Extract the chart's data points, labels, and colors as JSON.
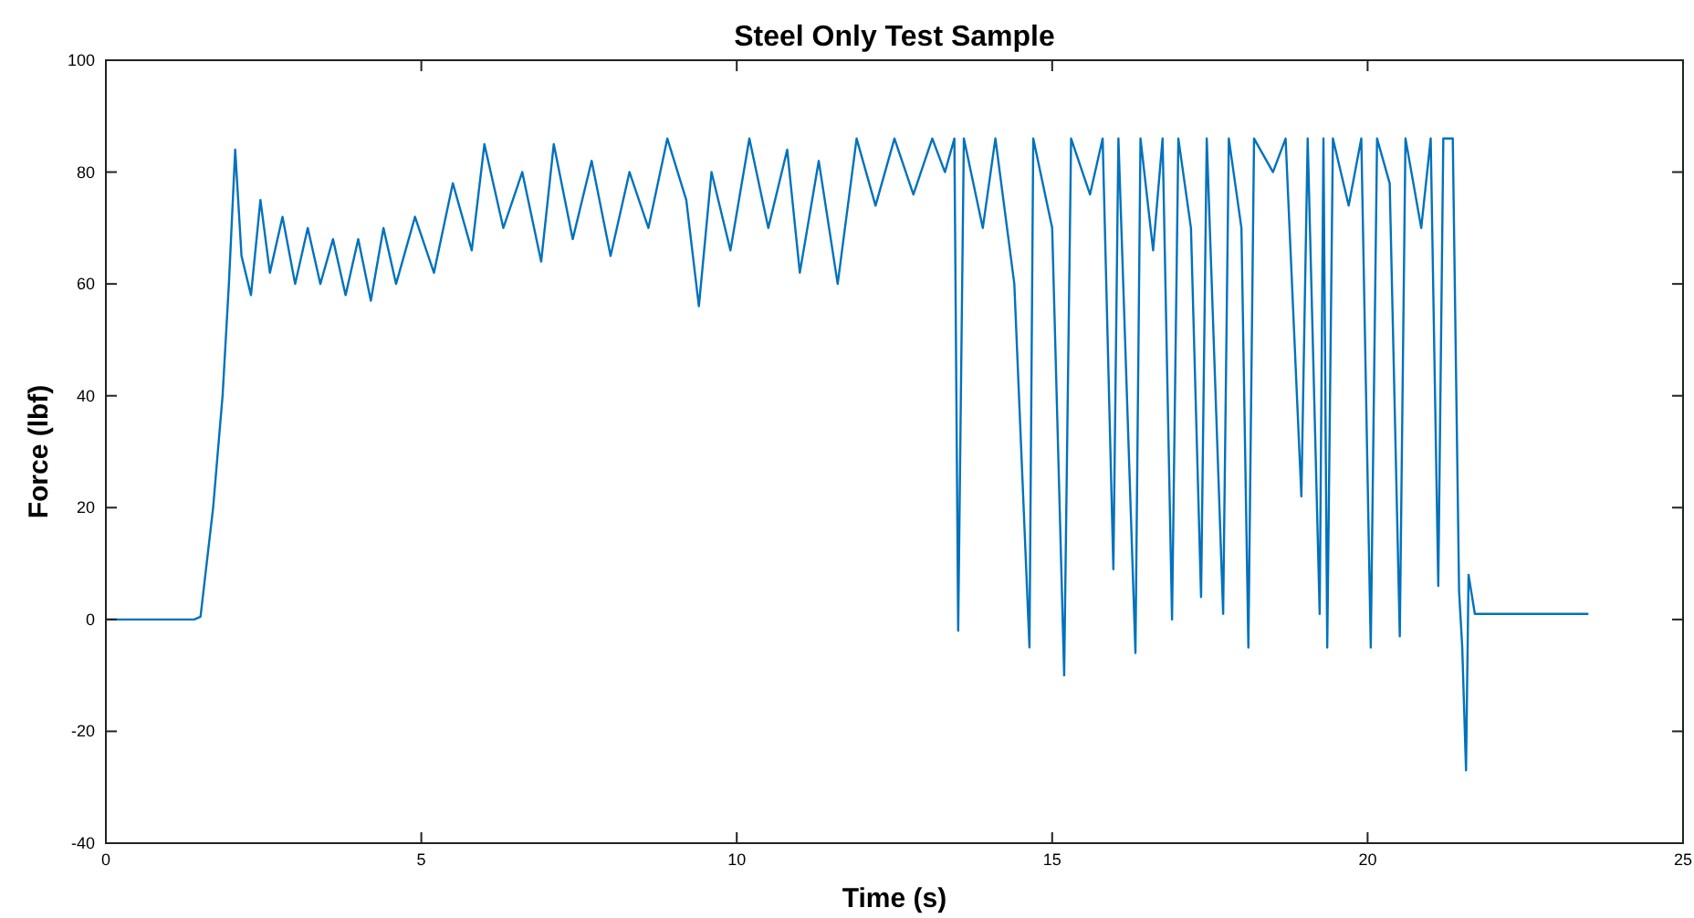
{
  "chart_data": {
    "type": "line",
    "title": "Steel Only Test Sample",
    "xlabel": "Time (s)",
    "ylabel": "Force (lbf)",
    "xlim": [
      0,
      25
    ],
    "xticks": [
      0,
      5,
      10,
      15,
      20,
      25
    ],
    "ylim": [
      -40,
      100
    ],
    "yticks": [
      -40,
      -20,
      0,
      20,
      40,
      60,
      80,
      100
    ],
    "grid": false,
    "marker": "none",
    "line_style": "solid",
    "series": [
      {
        "color": "#0072bd",
        "x": [
          0,
          1.4,
          1.5,
          1.7,
          1.85,
          1.95,
          2.05,
          2.15,
          2.3,
          2.45,
          2.6,
          2.8,
          3,
          3.2,
          3.4,
          3.6,
          3.8,
          4,
          4.2,
          4.4,
          4.6,
          4.9,
          5.2,
          5.5,
          5.8,
          6,
          6.3,
          6.6,
          6.9,
          7.1,
          7.4,
          7.7,
          8,
          8.3,
          8.6,
          8.9,
          9.2,
          9.4,
          9.6,
          9.9,
          10.2,
          10.5,
          10.8,
          11,
          11.3,
          11.6,
          11.9,
          12.2,
          12.5,
          12.8,
          13.1,
          13.3,
          13.45,
          13.51,
          13.6,
          13.9,
          14.1,
          14.4,
          14.64,
          14.7,
          15,
          15.19,
          15.3,
          15.6,
          15.8,
          15.97,
          16.05,
          16.32,
          16.4,
          16.6,
          16.75,
          16.9,
          17,
          17.2,
          17.36,
          17.45,
          17.71,
          17.8,
          18,
          18.11,
          18.2,
          18.5,
          18.7,
          18.95,
          19.05,
          19.24,
          19.3,
          19.36,
          19.45,
          19.7,
          19.9,
          20.05,
          20.15,
          20.35,
          20.51,
          20.6,
          20.85,
          21,
          21.12,
          21.2,
          21.35,
          21.45,
          21.5,
          21.56,
          21.6,
          21.7,
          23.5
        ],
        "values": [
          0,
          0,
          0.5,
          20,
          40,
          60,
          84,
          65,
          58,
          75,
          62,
          72,
          60,
          70,
          60,
          68,
          58,
          68,
          57,
          70,
          60,
          72,
          62,
          78,
          66,
          85,
          70,
          80,
          64,
          85,
          68,
          82,
          65,
          80,
          70,
          86,
          75,
          56,
          80,
          66,
          86,
          70,
          84,
          62,
          82,
          60,
          86,
          74,
          86,
          76,
          86,
          80,
          86,
          -2,
          86,
          70,
          86,
          60,
          -5,
          86,
          70,
          -10,
          86,
          76,
          86,
          9,
          86,
          -6,
          86,
          66,
          86,
          0,
          86,
          70,
          4,
          86,
          1,
          86,
          70,
          -5,
          86,
          80,
          86,
          22,
          86,
          1,
          86,
          -5,
          86,
          74,
          86,
          -5,
          86,
          78,
          -3,
          86,
          70,
          86,
          6,
          86,
          86,
          5,
          -5,
          -27,
          8,
          1,
          1
        ]
      }
    ]
  }
}
